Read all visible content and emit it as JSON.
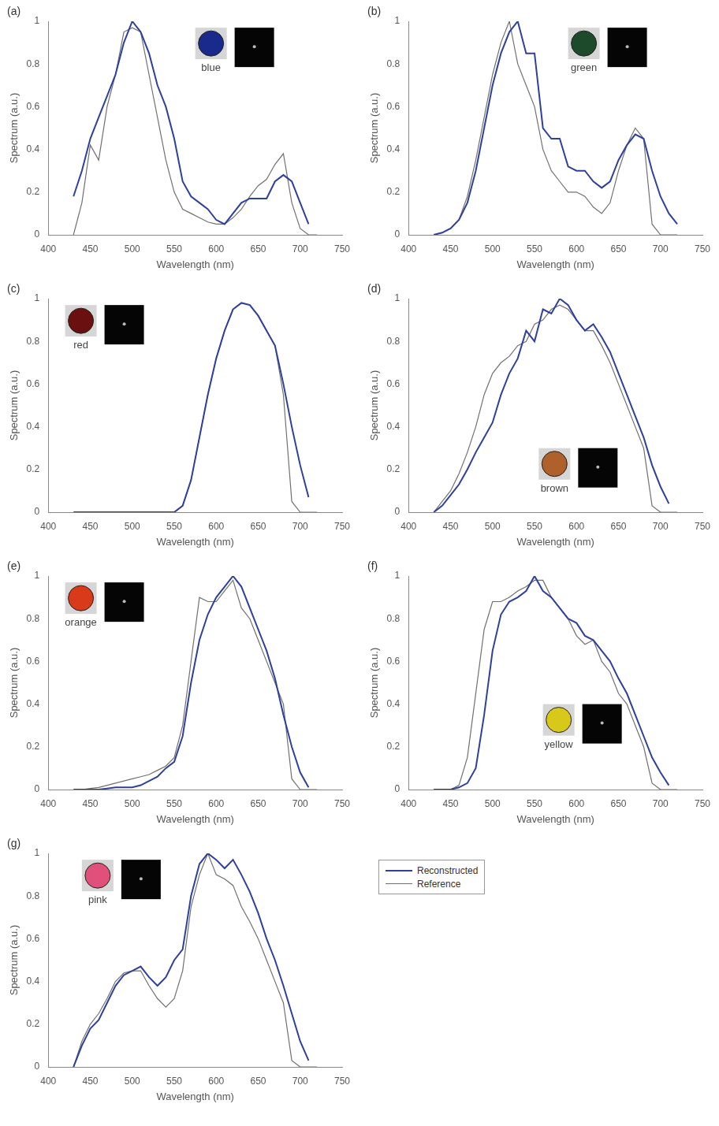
{
  "chart_data": [
    {
      "type": "line",
      "panel": "(a)",
      "annotation": "blue",
      "xlabel": "Wavelength (nm)",
      "ylabel": "Spectrum (a.u.)",
      "xlim": [
        400,
        750
      ],
      "xticks": [
        400,
        450,
        500,
        550,
        600,
        650,
        700,
        750
      ],
      "ylim": [
        0,
        1
      ],
      "yticks": [
        0,
        0.2,
        0.4,
        0.6,
        0.8,
        1
      ],
      "grid": false,
      "x": [
        430,
        440,
        450,
        460,
        470,
        480,
        490,
        500,
        510,
        520,
        530,
        540,
        550,
        560,
        570,
        580,
        590,
        600,
        610,
        620,
        630,
        640,
        650,
        660,
        670,
        680,
        690,
        700,
        710,
        720
      ],
      "series": [
        {
          "name": "Reconstructed",
          "color": "#2f3f9e",
          "values": [
            0.18,
            0.3,
            0.45,
            0.55,
            0.65,
            0.75,
            0.9,
            1.0,
            0.95,
            0.85,
            0.7,
            0.6,
            0.45,
            0.25,
            0.18,
            0.15,
            0.12,
            0.07,
            0.05,
            0.1,
            0.15,
            0.17,
            0.17,
            0.17,
            0.25,
            0.28,
            0.25,
            0.15,
            0.05,
            null
          ]
        },
        {
          "name": "Reference",
          "color": "#707070",
          "values": [
            0,
            0.15,
            0.42,
            0.35,
            0.6,
            0.75,
            0.95,
            0.97,
            0.95,
            0.75,
            0.55,
            0.35,
            0.2,
            0.12,
            0.1,
            0.08,
            0.06,
            0.05,
            0.05,
            0.08,
            0.12,
            0.18,
            0.23,
            0.26,
            0.33,
            0.38,
            0.15,
            0.03,
            0,
            0
          ]
        }
      ]
    },
    {
      "type": "line",
      "panel": "(b)",
      "annotation": "green",
      "xlabel": "Wavelength (nm)",
      "ylabel": "Spectrum (a.u.)",
      "xlim": [
        400,
        750
      ],
      "xticks": [
        400,
        450,
        500,
        550,
        600,
        650,
        700,
        750
      ],
      "ylim": [
        0,
        1
      ],
      "yticks": [
        0,
        0.2,
        0.4,
        0.6,
        0.8,
        1
      ],
      "grid": false,
      "x": [
        430,
        440,
        450,
        460,
        470,
        480,
        490,
        500,
        510,
        520,
        530,
        540,
        550,
        560,
        570,
        580,
        590,
        600,
        610,
        620,
        630,
        640,
        650,
        660,
        670,
        680,
        690,
        700,
        710,
        720
      ],
      "series": [
        {
          "name": "Reconstructed",
          "color": "#2f3f9e",
          "values": [
            0,
            0.01,
            0.03,
            0.07,
            0.15,
            0.3,
            0.5,
            0.7,
            0.85,
            0.95,
            1.0,
            0.85,
            0.85,
            0.5,
            0.45,
            0.45,
            0.32,
            0.3,
            0.3,
            0.25,
            0.22,
            0.25,
            0.35,
            0.42,
            0.47,
            0.45,
            0.3,
            0.18,
            0.1,
            0.05
          ]
        },
        {
          "name": "Reference",
          "color": "#707070",
          "values": [
            0,
            0.01,
            0.03,
            0.07,
            0.18,
            0.35,
            0.55,
            0.75,
            0.9,
            1.0,
            0.8,
            0.7,
            0.6,
            0.4,
            0.3,
            0.25,
            0.2,
            0.2,
            0.18,
            0.13,
            0.1,
            0.15,
            0.3,
            0.42,
            0.5,
            0.45,
            0.05,
            0,
            0,
            0
          ]
        }
      ]
    },
    {
      "type": "line",
      "panel": "(c)",
      "annotation": "red",
      "xlabel": "Wavelength (nm)",
      "ylabel": "Spectrum (a.u.)",
      "xlim": [
        400,
        750
      ],
      "xticks": [
        400,
        450,
        500,
        550,
        600,
        650,
        700,
        750
      ],
      "ylim": [
        0,
        1
      ],
      "yticks": [
        0,
        0.2,
        0.4,
        0.6,
        0.8,
        1
      ],
      "grid": false,
      "x": [
        430,
        440,
        450,
        460,
        470,
        480,
        490,
        500,
        510,
        520,
        530,
        540,
        550,
        560,
        570,
        580,
        590,
        600,
        610,
        620,
        630,
        640,
        650,
        660,
        670,
        680,
        690,
        700,
        710,
        720
      ],
      "series": [
        {
          "name": "Reconstructed",
          "color": "#2f3f9e",
          "values": [
            0,
            0,
            0,
            0,
            0,
            0,
            0,
            0,
            0,
            0,
            0,
            0,
            0,
            0.03,
            0.15,
            0.35,
            0.55,
            0.72,
            0.85,
            0.95,
            0.98,
            0.97,
            0.92,
            0.85,
            0.78,
            0.6,
            0.4,
            0.22,
            0.07,
            null
          ]
        },
        {
          "name": "Reference",
          "color": "#707070",
          "values": [
            0,
            0,
            0,
            0,
            0,
            0,
            0,
            0,
            0,
            0,
            0,
            0,
            0,
            0.03,
            0.15,
            0.35,
            0.55,
            0.72,
            0.85,
            0.95,
            0.98,
            0.97,
            0.92,
            0.85,
            0.78,
            0.55,
            0.05,
            0,
            0,
            0
          ]
        }
      ]
    },
    {
      "type": "line",
      "panel": "(d)",
      "annotation": "brown",
      "xlabel": "Wavelength (nm)",
      "ylabel": "Spectrum (a.u.)",
      "xlim": [
        400,
        750
      ],
      "xticks": [
        400,
        450,
        500,
        550,
        600,
        650,
        700,
        750
      ],
      "ylim": [
        0,
        1
      ],
      "yticks": [
        0,
        0.2,
        0.4,
        0.6,
        0.8,
        1
      ],
      "grid": false,
      "x": [
        430,
        440,
        450,
        460,
        470,
        480,
        490,
        500,
        510,
        520,
        530,
        540,
        550,
        560,
        570,
        580,
        590,
        600,
        610,
        620,
        630,
        640,
        650,
        660,
        670,
        680,
        690,
        700,
        710,
        720
      ],
      "series": [
        {
          "name": "Reconstructed",
          "color": "#2f3f9e",
          "values": [
            0,
            0.03,
            0.08,
            0.13,
            0.2,
            0.28,
            0.35,
            0.42,
            0.55,
            0.65,
            0.72,
            0.85,
            0.8,
            0.95,
            0.93,
            1.0,
            0.97,
            0.9,
            0.85,
            0.88,
            0.82,
            0.75,
            0.65,
            0.55,
            0.45,
            0.35,
            0.22,
            0.12,
            0.04,
            null
          ]
        },
        {
          "name": "Reference",
          "color": "#707070",
          "values": [
            0,
            0.05,
            0.1,
            0.18,
            0.28,
            0.4,
            0.55,
            0.65,
            0.7,
            0.73,
            0.78,
            0.8,
            0.88,
            0.9,
            0.95,
            0.97,
            0.95,
            0.9,
            0.85,
            0.85,
            0.78,
            0.7,
            0.6,
            0.5,
            0.4,
            0.3,
            0.03,
            0,
            0,
            0
          ]
        }
      ]
    },
    {
      "type": "line",
      "panel": "(e)",
      "annotation": "orange",
      "xlabel": "Wavelength (nm)",
      "ylabel": "Spectrum (a.u.)",
      "xlim": [
        400,
        750
      ],
      "xticks": [
        400,
        450,
        500,
        550,
        600,
        650,
        700,
        750
      ],
      "ylim": [
        0,
        1
      ],
      "yticks": [
        0,
        0.2,
        0.4,
        0.6,
        0.8,
        1
      ],
      "grid": false,
      "x": [
        430,
        440,
        450,
        460,
        470,
        480,
        490,
        500,
        510,
        520,
        530,
        540,
        550,
        560,
        570,
        580,
        590,
        600,
        610,
        620,
        630,
        640,
        650,
        660,
        670,
        680,
        690,
        700,
        710,
        720
      ],
      "series": [
        {
          "name": "Reconstructed",
          "color": "#2f3f9e",
          "values": [
            0,
            0,
            0,
            0,
            0.005,
            0.01,
            0.01,
            0.01,
            0.02,
            0.04,
            0.06,
            0.1,
            0.13,
            0.25,
            0.5,
            0.7,
            0.82,
            0.9,
            0.95,
            1.0,
            0.95,
            0.85,
            0.75,
            0.65,
            0.52,
            0.35,
            0.2,
            0.08,
            0.01,
            null
          ]
        },
        {
          "name": "Reference",
          "color": "#707070",
          "values": [
            0,
            0,
            0.005,
            0.01,
            0.02,
            0.03,
            0.04,
            0.05,
            0.06,
            0.07,
            0.09,
            0.11,
            0.15,
            0.3,
            0.6,
            0.9,
            0.88,
            0.88,
            0.93,
            0.98,
            0.85,
            0.8,
            0.7,
            0.6,
            0.5,
            0.4,
            0.05,
            0,
            0,
            0
          ]
        }
      ]
    },
    {
      "type": "line",
      "panel": "(f)",
      "annotation": "yellow",
      "xlabel": "Wavelength (nm)",
      "ylabel": "Spectrum (a.u.)",
      "xlim": [
        400,
        750
      ],
      "xticks": [
        400,
        450,
        500,
        550,
        600,
        650,
        700,
        750
      ],
      "ylim": [
        0,
        1
      ],
      "yticks": [
        0,
        0.2,
        0.4,
        0.6,
        0.8,
        1
      ],
      "grid": false,
      "x": [
        430,
        440,
        450,
        460,
        470,
        480,
        490,
        500,
        510,
        520,
        530,
        540,
        550,
        560,
        570,
        580,
        590,
        600,
        610,
        620,
        630,
        640,
        650,
        660,
        670,
        680,
        690,
        700,
        710,
        720
      ],
      "series": [
        {
          "name": "Reconstructed",
          "color": "#2f3f9e",
          "values": [
            0,
            0,
            0,
            0.01,
            0.03,
            0.1,
            0.35,
            0.65,
            0.82,
            0.88,
            0.9,
            0.93,
            1.0,
            0.93,
            0.9,
            0.85,
            0.8,
            0.78,
            0.72,
            0.7,
            0.65,
            0.6,
            0.52,
            0.45,
            0.35,
            0.25,
            0.15,
            0.08,
            0.02,
            null
          ]
        },
        {
          "name": "Reference",
          "color": "#707070",
          "values": [
            0,
            0,
            0,
            0.02,
            0.15,
            0.45,
            0.75,
            0.88,
            0.88,
            0.9,
            0.93,
            0.95,
            0.98,
            0.98,
            0.9,
            0.85,
            0.8,
            0.72,
            0.68,
            0.7,
            0.6,
            0.55,
            0.45,
            0.4,
            0.3,
            0.2,
            0.03,
            0,
            0,
            0
          ]
        }
      ]
    },
    {
      "type": "line",
      "panel": "(g)",
      "annotation": "pink",
      "xlabel": "Wavelength (nm)",
      "ylabel": "Spectrum (a.u.)",
      "xlim": [
        400,
        750
      ],
      "xticks": [
        400,
        450,
        500,
        550,
        600,
        650,
        700,
        750
      ],
      "ylim": [
        0,
        1
      ],
      "yticks": [
        0,
        0.2,
        0.4,
        0.6,
        0.8,
        1
      ],
      "grid": false,
      "legend": "right",
      "x": [
        430,
        440,
        450,
        460,
        470,
        480,
        490,
        500,
        510,
        520,
        530,
        540,
        550,
        560,
        570,
        580,
        590,
        600,
        610,
        620,
        630,
        640,
        650,
        660,
        670,
        680,
        690,
        700,
        710,
        720
      ],
      "series": [
        {
          "name": "Reconstructed",
          "color": "#2f3f9e",
          "values": [
            0,
            0.1,
            0.18,
            0.22,
            0.3,
            0.38,
            0.43,
            0.45,
            0.47,
            0.42,
            0.38,
            0.42,
            0.5,
            0.55,
            0.8,
            0.95,
            1.0,
            0.97,
            0.93,
            0.97,
            0.9,
            0.82,
            0.72,
            0.6,
            0.5,
            0.38,
            0.25,
            0.12,
            0.03,
            null
          ]
        },
        {
          "name": "Reference",
          "color": "#707070",
          "values": [
            0,
            0.12,
            0.2,
            0.25,
            0.32,
            0.4,
            0.44,
            0.45,
            0.45,
            0.38,
            0.32,
            0.28,
            0.32,
            0.45,
            0.75,
            0.9,
            1.0,
            0.9,
            0.88,
            0.85,
            0.75,
            0.68,
            0.6,
            0.5,
            0.4,
            0.3,
            0.03,
            0,
            0,
            0
          ]
        }
      ]
    }
  ]
}
